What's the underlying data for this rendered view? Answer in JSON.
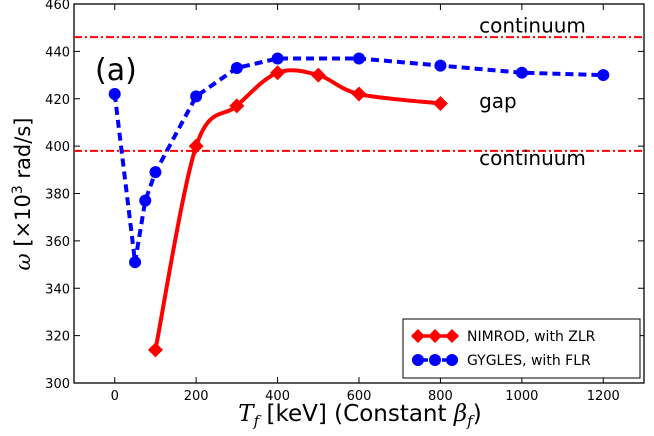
{
  "chart_data": {
    "type": "line",
    "panel_label": "(a)",
    "xlabel": {
      "symbol": "T",
      "sub": "f",
      "text": " [keV] (Constant ",
      "symbol2": "β",
      "sub2": "f",
      "end": ")"
    },
    "ylabel": {
      "symbol": "ω",
      "open": " [×10",
      "sup": "3",
      "close": " rad/s]"
    },
    "xlim": [
      -100,
      1300
    ],
    "ylim": [
      300,
      460
    ],
    "xticks": [
      0,
      200,
      400,
      600,
      800,
      1000,
      1200
    ],
    "yticks": [
      300,
      320,
      340,
      360,
      380,
      400,
      420,
      440,
      460
    ],
    "xtick_labels": [
      "0",
      "200",
      "400",
      "600",
      "800",
      "1000",
      "1200"
    ],
    "ytick_labels": [
      "300",
      "320",
      "340",
      "360",
      "380",
      "400",
      "420",
      "440",
      "460"
    ],
    "series": [
      {
        "name": "NIMROD, with ZLR",
        "color": "#ff0000",
        "marker": "diamond",
        "line": "solid",
        "x": [
          100,
          200,
          300,
          400,
          500,
          600,
          800
        ],
        "y": [
          314,
          400,
          417,
          431,
          430,
          422,
          418
        ]
      },
      {
        "name": "GYGLES, with FLR",
        "color": "#0000ff",
        "marker": "circle",
        "line": "dashed",
        "x": [
          0,
          50,
          75,
          100,
          200,
          300,
          400,
          600,
          800,
          1000,
          1200
        ],
        "y": [
          422,
          351,
          377,
          389,
          421,
          433,
          437,
          437,
          434,
          431,
          430
        ]
      }
    ],
    "hlines": [
      {
        "y": 446,
        "color": "#ff0000",
        "style": "dashdot"
      },
      {
        "y": 398,
        "color": "#ff0000",
        "style": "dashdot"
      }
    ],
    "annotations": [
      {
        "text": "continuum",
        "x": 895,
        "y": 448
      },
      {
        "text": "gap",
        "x": 895,
        "y": 416
      },
      {
        "text": "continuum",
        "x": 895,
        "y": 392
      }
    ],
    "legend_position": "bottom-right"
  }
}
